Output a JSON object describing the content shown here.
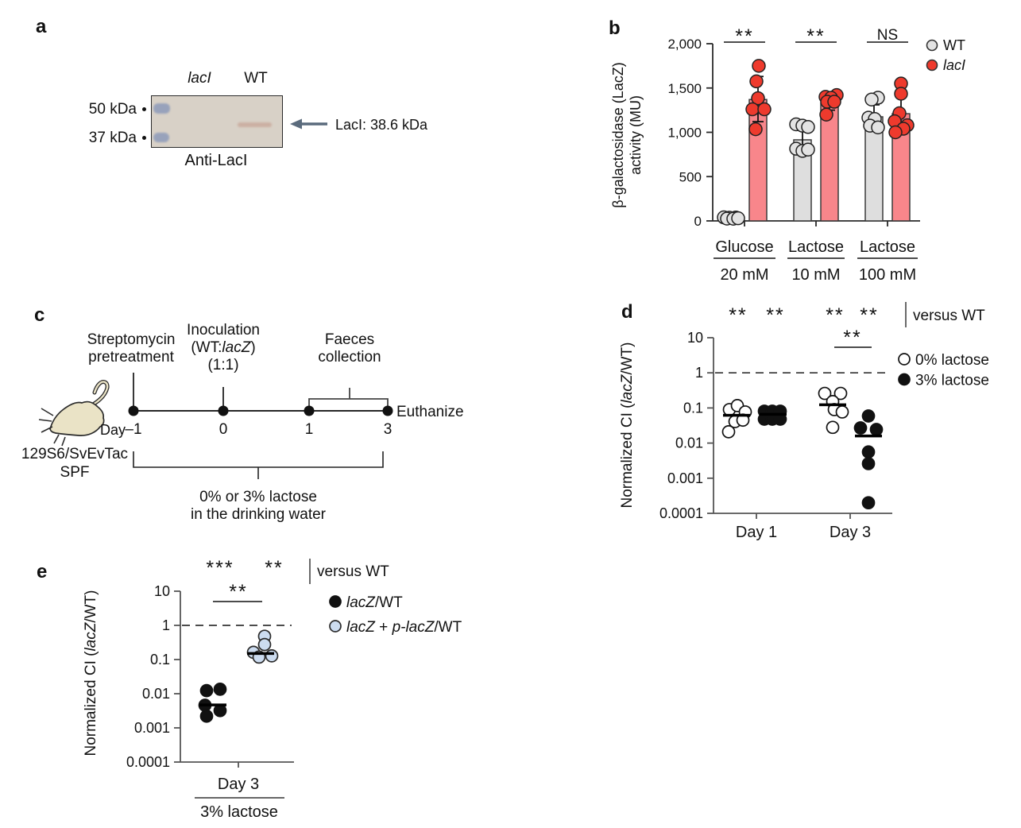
{
  "panel_a": {
    "label": "a",
    "lane_lacI": "lacI",
    "lane_WT": "WT",
    "marker_50": "50 kDa",
    "marker_37": "37 kDa",
    "band_annotation": "LacI: 38.6 kDa",
    "caption": "Anti-LacI"
  },
  "panel_c": {
    "label": "c",
    "strain": "129S6/SvEvTac",
    "strain_status": "SPF",
    "day_label": "Day",
    "day_ticks": [
      "–1",
      "0",
      "1",
      "3"
    ],
    "event_streptomycin": [
      "Streptomycin",
      "pretreatment"
    ],
    "event_inoculation_line1": "Inoculation",
    "event_inoculation_line2_segs": [
      [
        "(WT:",
        0
      ],
      [
        "lacZ",
        1
      ],
      [
        ")",
        0
      ]
    ],
    "event_inoculation_line3": "(1:1)",
    "event_faeces": [
      "Faeces",
      "collection"
    ],
    "event_euthanize": "Euthanize",
    "water_note": [
      "0% or 3% lactose",
      "in the drinking water"
    ]
  },
  "chart_data": [
    {
      "id": "b",
      "panel_label": "b",
      "type": "bar",
      "ylabel_lines": [
        "β-galactosidase (LacZ)",
        "activity (MU)"
      ],
      "ylim": [
        0,
        2000
      ],
      "yticks": [
        {
          "v": 0,
          "label": "0"
        },
        {
          "v": 500,
          "label": "500"
        },
        {
          "v": 1000,
          "label": "1,000"
        },
        {
          "v": 1500,
          "label": "1,500"
        },
        {
          "v": 2000,
          "label": "2,000"
        }
      ],
      "series_names": [
        "WT",
        "lacI"
      ],
      "groups": [
        {
          "category": "Glucose",
          "conc": "20 mM",
          "sig": "**",
          "bars": [
            {
              "series": "WT",
              "mean": 30,
              "err": [
                15,
                50
              ],
              "points": [
                [
                  -9,
                  40
                ],
                [
                  -2,
                  36
                ],
                [
                  6,
                  38
                ],
                [
                  -5,
                  26
                ],
                [
                  3,
                  25
                ],
                [
                  9,
                  30
                ]
              ]
            },
            {
              "series": "lacI",
              "mean": 1370,
              "err": [
                1120,
                1630
              ],
              "points": [
                [
                  1,
                  1750
                ],
                [
                  -2,
                  1575
                ],
                [
                  0,
                  1385
                ],
                [
                  -7,
                  1260
                ],
                [
                  8,
                  1260
                ],
                [
                  -3,
                  1035
                ]
              ]
            }
          ]
        },
        {
          "category": "Lactose",
          "conc": "10 mM",
          "sig": "**",
          "bars": [
            {
              "series": "WT",
              "mean": 915,
              "err": [
                760,
                1060
              ],
              "points": [
                [
                  -8,
                  1090
                ],
                [
                  0,
                  1075
                ],
                [
                  7,
                  1060
                ],
                [
                  -8,
                  815
                ],
                [
                  0,
                  790
                ],
                [
                  7,
                  805
                ]
              ]
            },
            {
              "series": "lacI",
              "mean": 1330,
              "err": [
                1250,
                1390
              ],
              "points": [
                [
                  -5,
                  1400
                ],
                [
                  9,
                  1420
                ],
                [
                  2,
                  1390
                ],
                [
                  -3,
                  1345
                ],
                [
                  6,
                  1345
                ],
                [
                  -4,
                  1200
                ]
              ]
            }
          ]
        },
        {
          "category": "Lactose",
          "conc": "100 mM",
          "sig": "NS",
          "bars": [
            {
              "series": "WT",
              "mean": 1175,
              "err": [
                1040,
                1310
              ],
              "points": [
                [
                  5,
                  1390
                ],
                [
                  -3,
                  1370
                ],
                [
                  -7,
                  1165
                ],
                [
                  1,
                  1150
                ],
                [
                  -5,
                  1075
                ],
                [
                  5,
                  1055
                ]
              ]
            },
            {
              "series": "lacI",
              "mean": 1210,
              "err": [
                1000,
                1440
              ],
              "points": [
                [
                  0,
                  1550
                ],
                [
                  0,
                  1435
                ],
                [
                  -2,
                  1215
                ],
                [
                  -8,
                  1125
                ],
                [
                  8,
                  1080
                ],
                [
                  3,
                  1040
                ],
                [
                  -7,
                  1000
                ]
              ]
            }
          ]
        }
      ],
      "legend": [
        {
          "label": "WT",
          "italic": false,
          "swatch": "grey"
        },
        {
          "label": "lacI",
          "italic": true,
          "swatch": "red"
        }
      ]
    },
    {
      "id": "d",
      "panel_label": "d",
      "type": "scatter-log",
      "ylabel_segs": [
        [
          "Normalized CI (",
          0
        ],
        [
          "lacZ",
          1
        ],
        [
          "/WT)",
          0
        ]
      ],
      "ytick_labels": [
        "10",
        "1",
        "0.1",
        "0.01",
        "0.001",
        "0.0001"
      ],
      "ytick_values": [
        10,
        1,
        0.1,
        0.01,
        0.001,
        0.0001
      ],
      "ref_line_value": 1,
      "top_sig": [
        "**",
        "**",
        "**",
        "**"
      ],
      "versus_label": "versus WT",
      "bracket_label": "**",
      "x_categories": [
        "Day 1",
        "Day 3"
      ],
      "groups": [
        {
          "x": "Day 1",
          "series": "0% lactose",
          "style": "open",
          "median": 0.062,
          "points": [
            [
              -9,
              0.09
            ],
            [
              1,
              0.117
            ],
            [
              11,
              0.077
            ],
            [
              -2,
              0.041
            ],
            [
              8,
              0.045
            ],
            [
              -10,
              0.021
            ]
          ]
        },
        {
          "x": "Day 1",
          "series": "3% lactose",
          "style": "filled",
          "median": 0.066,
          "points": [
            [
              -11,
              0.081
            ],
            [
              -1,
              0.081
            ],
            [
              9,
              0.081
            ],
            [
              -11,
              0.048
            ],
            [
              -1,
              0.048
            ],
            [
              9,
              0.048
            ]
          ]
        },
        {
          "x": "Day 3",
          "series": "0% lactose",
          "style": "open",
          "median": 0.123,
          "points": [
            [
              -10,
              0.26
            ],
            [
              10,
              0.26
            ],
            [
              0,
              0.152
            ],
            [
              2,
              0.09
            ],
            [
              12,
              0.077
            ],
            [
              0,
              0.028
            ]
          ]
        },
        {
          "x": "Day 3",
          "series": "3% lactose",
          "style": "filled",
          "median": 0.016,
          "points": [
            [
              0,
              0.059
            ],
            [
              -10,
              0.027
            ],
            [
              10,
              0.0244
            ],
            [
              0,
              0.0056
            ],
            [
              0,
              0.0026
            ],
            [
              0,
              0.0002
            ]
          ]
        }
      ],
      "legend": [
        {
          "label_segs": [
            [
              "0% lactose",
              0
            ]
          ],
          "style": "open"
        },
        {
          "label_segs": [
            [
              "3% lactose",
              0
            ]
          ],
          "style": "filled"
        }
      ]
    },
    {
      "id": "e",
      "panel_label": "e",
      "type": "scatter-log",
      "ylabel_segs": [
        [
          "Normalized CI (",
          0
        ],
        [
          "lacZ",
          1
        ],
        [
          "/WT)",
          0
        ]
      ],
      "ytick_labels": [
        "10",
        "1",
        "0.1",
        "0.01",
        "0.001",
        "0.0001"
      ],
      "ytick_values": [
        10,
        1,
        0.1,
        0.01,
        0.001,
        0.0001
      ],
      "ref_line_value": 1,
      "top_sig": [
        "***",
        "**"
      ],
      "versus_label": "versus WT",
      "bracket_label": "**",
      "x_categories": [
        "Day 3"
      ],
      "x_sub_label": "3% lactose",
      "groups": [
        {
          "series": "lacZ/WT",
          "style": "filled",
          "median": 0.0047,
          "points": [
            [
              -8,
              0.0123
            ],
            [
              9,
              0.0135
            ],
            [
              -10,
              0.0046
            ],
            [
              9,
              0.0032
            ],
            [
              -8,
              0.0022
            ]
          ]
        },
        {
          "series": "lacZ + p-lacZ/WT",
          "style": "blue",
          "median": 0.15,
          "points": [
            [
              5,
              0.48
            ],
            [
              5,
              0.275
            ],
            [
              -9,
              0.163
            ],
            [
              14,
              0.128
            ],
            [
              -2,
              0.118
            ]
          ]
        }
      ],
      "legend": [
        {
          "label_segs": [
            [
              "lacZ",
              1
            ],
            [
              "/WT",
              0
            ]
          ],
          "style": "filled"
        },
        {
          "label_segs": [
            [
              "lacZ",
              1
            ],
            [
              " + ",
              0
            ],
            [
              "p-lacZ",
              1
            ],
            [
              "/WT",
              0
            ]
          ],
          "style": "blue"
        }
      ]
    }
  ],
  "colors": {
    "wt_bar": "#dedede",
    "wt_point": "#e3e3e3",
    "laci_bar": "#f8868b",
    "laci_point": "#ee3a2d",
    "blue_point": "#ccdcf0",
    "axis": "#2a2a2a",
    "axis_grey": "#555555",
    "blot_bg": "#d8d1c7",
    "ladder_band": "#98a2bb",
    "faint_band": "#c9aa9c",
    "arrow": "#5b6b7d",
    "mouse_fill": "#eae3c6"
  }
}
